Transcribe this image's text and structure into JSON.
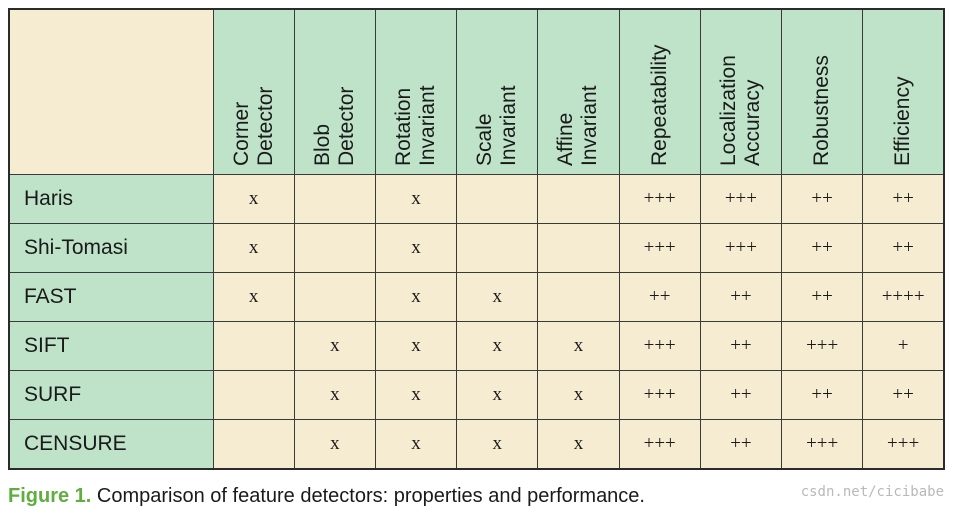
{
  "table": {
    "columns": [
      "Corner\nDetector",
      "Blob\nDetector",
      "Rotation\nInvariant",
      "Scale\nInvariant",
      "Affine\nInvariant",
      "Repeatability",
      "Localization\nAccuracy",
      "Robustness",
      "Efficiency"
    ],
    "rows": [
      {
        "name": "Haris",
        "cells": [
          "x",
          "",
          "x",
          "",
          "",
          "+++",
          "+++",
          "++",
          "++"
        ]
      },
      {
        "name": "Shi-Tomasi",
        "cells": [
          "x",
          "",
          "x",
          "",
          "",
          "+++",
          "+++",
          "++",
          "++"
        ]
      },
      {
        "name": "FAST",
        "cells": [
          "x",
          "",
          "x",
          "x",
          "",
          "++",
          "++",
          "++",
          "++++"
        ]
      },
      {
        "name": "SIFT",
        "cells": [
          "",
          "x",
          "x",
          "x",
          "x",
          "+++",
          "++",
          "+++",
          "+"
        ]
      },
      {
        "name": "SURF",
        "cells": [
          "",
          "x",
          "x",
          "x",
          "x",
          "+++",
          "++",
          "++",
          "++"
        ]
      },
      {
        "name": "CENSURE",
        "cells": [
          "",
          "x",
          "x",
          "x",
          "x",
          "+++",
          "++",
          "+++",
          "+++"
        ]
      }
    ]
  },
  "caption": {
    "label": "Figure 1.",
    "text": "Comparison of feature detectors: properties and performance."
  },
  "watermark": "csdn.net/cicibabe",
  "colors": {
    "header_green": "#bfe3c9",
    "cell_cream": "#f5ecd1",
    "caption_label_green": "#5fae3e"
  }
}
